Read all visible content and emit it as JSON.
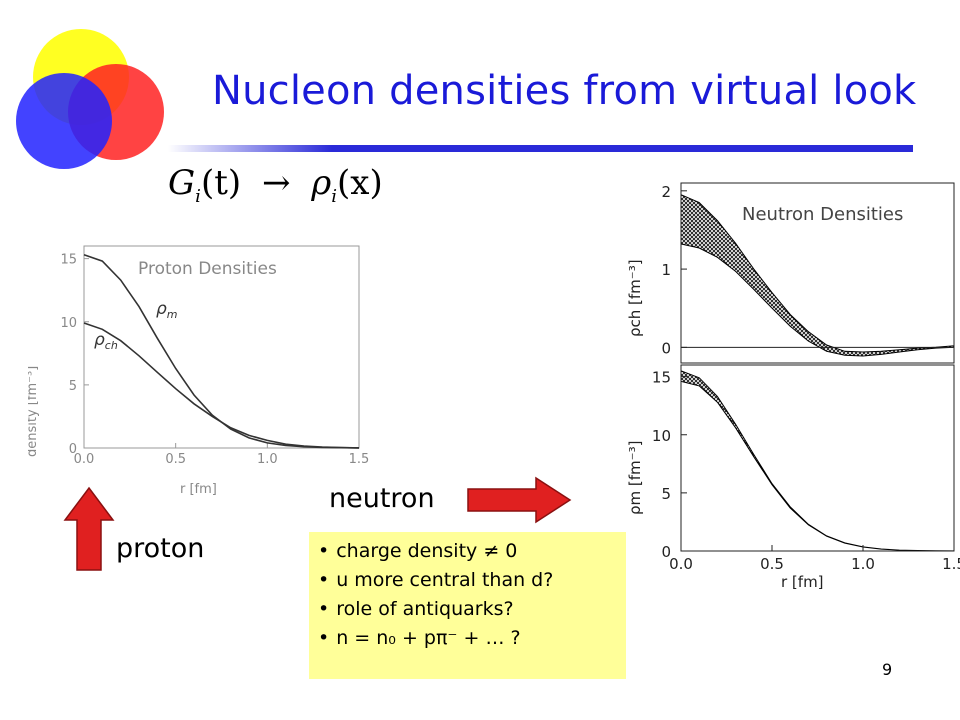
{
  "title": "Nucleon densities from virtual look",
  "formula": {
    "lhs": "G",
    "lhs_sub": "i",
    "lhs_arg": "(t)",
    "arrow": "→",
    "rhs": "ρ",
    "rhs_sub": "i",
    "rhs_arg": "(x)"
  },
  "labels": {
    "neutron": "neutron",
    "proton": "proton"
  },
  "bullets": [
    "charge density ≠ 0",
    "u more central than d?",
    "role of antiquarks?",
    "n = n₀ + pπ⁻ + … ?"
  ],
  "page_number": "9",
  "colors": {
    "title": "#1a1ad8",
    "arrow": "#e02020",
    "notes_bg": "#ffff99"
  },
  "chart_data": [
    {
      "type": "line",
      "title": "Proton Densities",
      "xlabel": "r   [fm]",
      "ylabel": "density   [fm⁻³]",
      "xlim": [
        0,
        1.5
      ],
      "ylim": [
        0,
        16
      ],
      "xticks": [
        "0.0",
        "0.5",
        "1.0",
        "1.5"
      ],
      "yticks": [
        "0",
        "5",
        "10",
        "15"
      ],
      "series": [
        {
          "name": "ρm",
          "x": [
            0,
            0.1,
            0.2,
            0.3,
            0.4,
            0.5,
            0.6,
            0.7,
            0.8,
            0.9,
            1.0,
            1.1,
            1.2,
            1.3,
            1.4,
            1.5
          ],
          "values": [
            15.3,
            14.8,
            13.3,
            11.2,
            8.7,
            6.3,
            4.2,
            2.6,
            1.5,
            0.8,
            0.4,
            0.2,
            0.1,
            0.05,
            0.02,
            0.01
          ]
        },
        {
          "name": "ρch",
          "x": [
            0,
            0.1,
            0.2,
            0.3,
            0.4,
            0.5,
            0.6,
            0.7,
            0.8,
            0.9,
            1.0,
            1.1,
            1.2,
            1.3,
            1.4,
            1.5
          ],
          "values": [
            9.9,
            9.4,
            8.5,
            7.3,
            6.0,
            4.7,
            3.5,
            2.5,
            1.6,
            1.0,
            0.6,
            0.3,
            0.15,
            0.07,
            0.03,
            0.01
          ]
        }
      ]
    },
    {
      "type": "area",
      "title": "Neutron Densities",
      "ylabel": "ρch   [fm⁻³]",
      "xlim": [
        0,
        1.5
      ],
      "ylim": [
        -0.2,
        2.1
      ],
      "yticks": [
        "0",
        "1",
        "2"
      ],
      "series": [
        {
          "name": "upper",
          "x": [
            0,
            0.1,
            0.2,
            0.3,
            0.4,
            0.5,
            0.6,
            0.7,
            0.8,
            0.9,
            1.0,
            1.1,
            1.2,
            1.3,
            1.4,
            1.5
          ],
          "values": [
            1.95,
            1.85,
            1.62,
            1.33,
            1.0,
            0.7,
            0.42,
            0.2,
            0.03,
            -0.05,
            -0.06,
            -0.05,
            -0.03,
            -0.01,
            0.0,
            0.02
          ]
        },
        {
          "name": "lower",
          "x": [
            0,
            0.1,
            0.2,
            0.3,
            0.4,
            0.5,
            0.6,
            0.7,
            0.8,
            0.9,
            1.0,
            1.1,
            1.2,
            1.3,
            1.4,
            1.5
          ],
          "values": [
            1.32,
            1.27,
            1.15,
            0.97,
            0.74,
            0.5,
            0.27,
            0.08,
            -0.05,
            -0.1,
            -0.11,
            -0.09,
            -0.06,
            -0.03,
            -0.01,
            0.0
          ]
        }
      ]
    },
    {
      "type": "area",
      "xlabel": "r   [fm]",
      "ylabel": "ρm   [fm⁻³]",
      "xlim": [
        0,
        1.5
      ],
      "ylim": [
        0,
        16
      ],
      "xticks": [
        "0.0",
        "0.5",
        "1.0",
        "1.5"
      ],
      "yticks": [
        "0",
        "5",
        "10",
        "15"
      ],
      "series": [
        {
          "name": "upper",
          "x": [
            0,
            0.1,
            0.2,
            0.3,
            0.4,
            0.5,
            0.6,
            0.7,
            0.8,
            0.9,
            1.0,
            1.1,
            1.2,
            1.3,
            1.4,
            1.5
          ],
          "values": [
            15.5,
            14.9,
            13.3,
            10.9,
            8.3,
            5.8,
            3.8,
            2.3,
            1.3,
            0.7,
            0.35,
            0.17,
            0.08,
            0.04,
            0.02,
            0.01
          ]
        },
        {
          "name": "lower",
          "x": [
            0,
            0.1,
            0.2,
            0.3,
            0.4,
            0.5,
            0.6,
            0.7,
            0.8,
            0.9,
            1.0,
            1.1,
            1.2,
            1.3,
            1.4,
            1.5
          ],
          "values": [
            14.6,
            14.2,
            12.8,
            10.6,
            8.1,
            5.7,
            3.7,
            2.25,
            1.27,
            0.68,
            0.34,
            0.16,
            0.08,
            0.04,
            0.02,
            0.01
          ]
        }
      ]
    }
  ]
}
